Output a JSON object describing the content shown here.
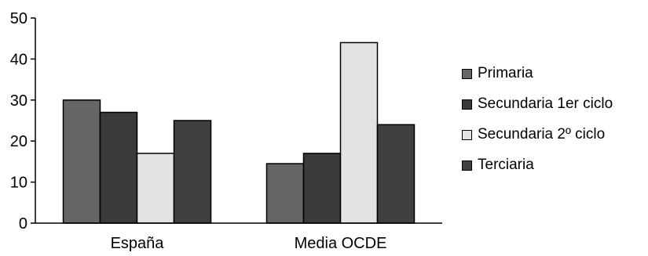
{
  "chart_data": {
    "type": "bar",
    "categories": [
      "España",
      "Media OCDE"
    ],
    "series": [
      {
        "name": "Primaria",
        "values": [
          30,
          14.5
        ],
        "color": "#666666"
      },
      {
        "name": "Secundaria 1er ciclo",
        "values": [
          27,
          17
        ],
        "color": "#3a3a3a"
      },
      {
        "name": "Secundaria 2º ciclo",
        "values": [
          17,
          44
        ],
        "color": "#e3e3e3"
      },
      {
        "name": "Terciaria",
        "values": [
          25,
          24
        ],
        "color": "#404040"
      }
    ],
    "title": "",
    "xlabel": "",
    "ylabel": "",
    "ylim": [
      0,
      50
    ],
    "yticks": [
      0,
      10,
      20,
      30,
      40,
      50
    ],
    "grid": false,
    "legend_position": "right"
  }
}
